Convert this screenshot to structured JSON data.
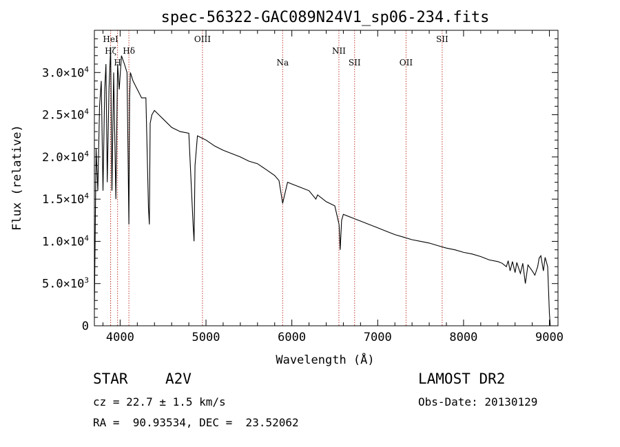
{
  "chart_data": {
    "type": "line",
    "title": "spec-56322-GAC089N24V1_sp06-234.fits",
    "xlabel": "Wavelength (Å)",
    "ylabel": "Flux (relative)",
    "xlim": [
      3700,
      9100
    ],
    "ylim": [
      0,
      35000
    ],
    "x_ticks": [
      4000,
      5000,
      6000,
      7000,
      8000,
      9000
    ],
    "x_tick_labels": [
      "4000",
      "5000",
      "6000",
      "7000",
      "8000",
      "9000"
    ],
    "y_ticks": [
      {
        "value": 0,
        "mant": "0",
        "exp": ""
      },
      {
        "value": 5000,
        "mant": "5.0×10",
        "exp": "3"
      },
      {
        "value": 10000,
        "mant": "1.0×10",
        "exp": "4"
      },
      {
        "value": 15000,
        "mant": "1.5×10",
        "exp": "4"
      },
      {
        "value": 20000,
        "mant": "2.0×10",
        "exp": "4"
      },
      {
        "value": 25000,
        "mant": "2.5×10",
        "exp": "4"
      },
      {
        "value": 30000,
        "mant": "3.0×10",
        "exp": "4"
      }
    ],
    "grid": false,
    "line_color": "#000000",
    "marker_color": "#c0392b",
    "emission_lines": [
      {
        "label": "HeI",
        "wavelength": 3889,
        "label_level": 1
      },
      {
        "label": "Hζ",
        "wavelength": 3889,
        "label_level": 2
      },
      {
        "label": "H",
        "wavelength": 3970,
        "label_level": 3
      },
      {
        "label": "Hδ",
        "wavelength": 4102,
        "label_level": 2
      },
      {
        "label": "OIII",
        "wavelength": 4959,
        "label_level": 1
      },
      {
        "label": "Na",
        "wavelength": 5893,
        "label_level": 3
      },
      {
        "label": "NII",
        "wavelength": 6548,
        "label_level": 2
      },
      {
        "label": "SII",
        "wavelength": 6731,
        "label_level": 3
      },
      {
        "label": "OII",
        "wavelength": 7330,
        "label_level": 3
      },
      {
        "label": "SII",
        "wavelength": 7751,
        "label_level": 1
      }
    ],
    "series": [
      {
        "x": [
          3700,
          3720,
          3740,
          3760,
          3780,
          3800,
          3820,
          3835,
          3850,
          3870,
          3889,
          3905,
          3925,
          3950,
          3970,
          3990,
          4015,
          4050,
          4080,
          4095,
          4102,
          4110,
          4120,
          4150,
          4200,
          4250,
          4300,
          4330,
          4340,
          4350,
          4370,
          4400,
          4450,
          4500,
          4550,
          4600,
          4700,
          4800,
          4850,
          4861,
          4872,
          4900,
          5000,
          5100,
          5200,
          5300,
          5400,
          5500,
          5600,
          5700,
          5800,
          5850,
          5893,
          5950,
          6000,
          6100,
          6200,
          6280,
          6300,
          6400,
          6500,
          6550,
          6563,
          6580,
          6600,
          6700,
          6800,
          6900,
          7000,
          7100,
          7200,
          7300,
          7400,
          7500,
          7600,
          7700,
          7800,
          7900,
          8000,
          8100,
          8200,
          8300,
          8400,
          8450,
          8498,
          8520,
          8542,
          8570,
          8600,
          8620,
          8662,
          8690,
          8720,
          8750,
          8800,
          8830,
          8863,
          8880,
          8900,
          8930,
          8950,
          8980,
          9000,
          9010
        ],
        "y": [
          2000,
          21000,
          16000,
          26000,
          29000,
          16000,
          28000,
          31000,
          17000,
          28000,
          33000,
          16000,
          30000,
          15000,
          31000,
          28000,
          32000,
          31000,
          30000,
          18000,
          12000,
          27000,
          30000,
          29000,
          28000,
          27000,
          27000,
          14000,
          12000,
          24000,
          25000,
          25500,
          25000,
          24500,
          24000,
          23500,
          23000,
          22800,
          12000,
          10000,
          19000,
          22500,
          22000,
          21300,
          20800,
          20400,
          20000,
          19500,
          19200,
          18500,
          17800,
          17200,
          14500,
          17000,
          16800,
          16400,
          16000,
          15000,
          15500,
          14700,
          14200,
          12000,
          9000,
          12500,
          13200,
          12800,
          12400,
          12000,
          11600,
          11200,
          10800,
          10500,
          10200,
          10000,
          9800,
          9500,
          9200,
          9000,
          8700,
          8500,
          8200,
          7800,
          7600,
          7400,
          7000,
          7700,
          6500,
          7600,
          6300,
          7500,
          6200,
          7400,
          5000,
          7200,
          6500,
          6000,
          7000,
          8000,
          8300,
          6500,
          8100,
          7000,
          1500,
          0
        ]
      }
    ]
  },
  "footer": {
    "left_line1_a": "STAR",
    "left_line1_b": "A2V",
    "left_line2": "cz = 22.7 ± 1.5 km/s",
    "left_line3": "RA =  90.93534, DEC =  23.52062",
    "right_line1": "LAMOST DR2",
    "right_line2": "Obs-Date: 20130129"
  }
}
